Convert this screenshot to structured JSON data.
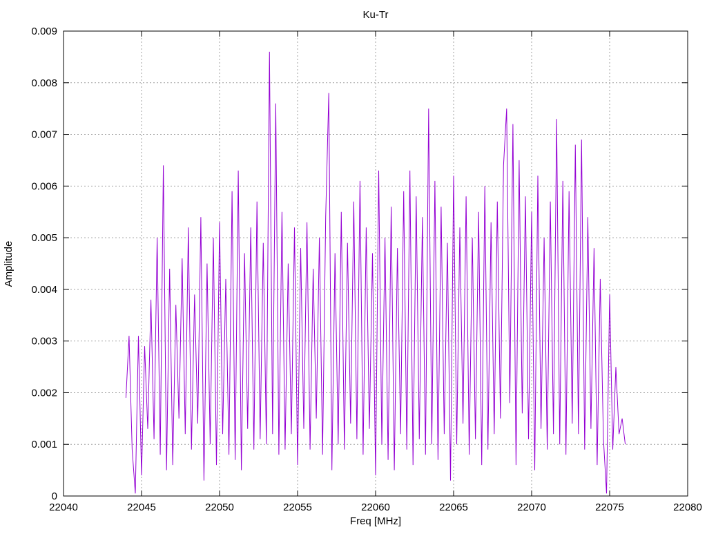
{
  "chart_data": {
    "type": "line",
    "title": "Ku-Tr",
    "xlabel": "Freq [MHz]",
    "ylabel": "Amplitude",
    "xlim": [
      22040,
      22080
    ],
    "ylim": [
      0,
      0.009
    ],
    "xticks": [
      "22040",
      "22045",
      "22050",
      "22055",
      "22060",
      "22065",
      "22070",
      "22075",
      "22080"
    ],
    "yticks": [
      "0",
      "0.001",
      "0.002",
      "0.003",
      "0.004",
      "0.005",
      "0.006",
      "0.007",
      "0.008",
      "0.009"
    ],
    "grid": true,
    "legend": "none",
    "series": [
      {
        "name": "Ku-Tr",
        "color": "#9400d3",
        "x_start": 22044.0,
        "x_step": 0.2,
        "y": [
          0.0019,
          0.0031,
          0.0009,
          5e-05,
          0.0031,
          0.0004,
          0.0029,
          0.0013,
          0.0038,
          0.0011,
          0.005,
          0.0008,
          0.0064,
          0.0005,
          0.0044,
          0.0006,
          0.0037,
          0.0015,
          0.0046,
          0.0012,
          0.0052,
          0.0009,
          0.0039,
          0.0014,
          0.0054,
          0.0003,
          0.0045,
          0.001,
          0.005,
          0.0006,
          0.0053,
          0.0012,
          0.0042,
          0.0008,
          0.0059,
          0.0007,
          0.0063,
          0.0005,
          0.0047,
          0.0013,
          0.0052,
          0.0009,
          0.0057,
          0.0011,
          0.0049,
          0.001,
          0.0086,
          0.0012,
          0.0076,
          0.0008,
          0.0055,
          0.0009,
          0.0045,
          0.0012,
          0.0052,
          0.0006,
          0.0048,
          0.0013,
          0.0053,
          0.0009,
          0.0044,
          0.0015,
          0.005,
          0.0008,
          0.0054,
          0.0078,
          0.0005,
          0.0047,
          0.001,
          0.0055,
          0.0009,
          0.0049,
          0.0014,
          0.0057,
          0.0011,
          0.0061,
          0.0008,
          0.0052,
          0.0013,
          0.0047,
          0.0004,
          0.0063,
          0.001,
          0.005,
          0.0007,
          0.0056,
          0.0005,
          0.0048,
          0.0012,
          0.0059,
          0.0009,
          0.0063,
          0.0006,
          0.0058,
          0.0011,
          0.0054,
          0.0008,
          0.0075,
          0.001,
          0.0061,
          0.0007,
          0.0056,
          0.0012,
          0.0049,
          0.0003,
          0.0062,
          0.001,
          0.0052,
          0.0014,
          0.0058,
          0.0008,
          0.005,
          0.0011,
          0.0055,
          0.0006,
          0.006,
          0.0009,
          0.0053,
          0.0012,
          0.0057,
          0.0015,
          0.0064,
          0.0075,
          0.0018,
          0.0072,
          0.0006,
          0.0065,
          0.0016,
          0.0058,
          0.0011,
          0.0055,
          0.0005,
          0.0062,
          0.0013,
          0.005,
          0.0009,
          0.0057,
          0.0012,
          0.0073,
          0.001,
          0.0061,
          0.0008,
          0.0059,
          0.0014,
          0.0068,
          0.0012,
          0.0069,
          0.0009,
          0.0054,
          0.0013,
          0.0048,
          0.0006,
          0.0042,
          0.0011,
          5e-05,
          0.0039,
          0.0009,
          0.0025,
          0.0012,
          0.0015,
          0.001
        ]
      }
    ]
  }
}
